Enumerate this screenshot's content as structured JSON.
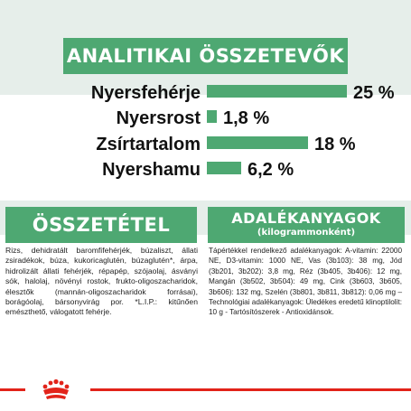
{
  "header": {
    "title": "ANALITIKAI ÖSSZETEVŐK"
  },
  "nutrients": [
    {
      "label": "Nyersfehérje",
      "value": "25 %",
      "percent": 25
    },
    {
      "label": "Nyersrost",
      "value": "1,8 %",
      "percent": 1.8
    },
    {
      "label": "Zsírtartalom",
      "value": "18 %",
      "percent": 18
    },
    {
      "label": "Nyershamu",
      "value": "6,2 %",
      "percent": 6.2
    }
  ],
  "composition": {
    "title": "ÖSSZETÉTEL",
    "text": "Rizs, dehidratált baromfifehérjék, búzaliszt, állati zsiradékok, búza, kukoricaglutén, búzaglutén*, árpa, hidrolizált állati fehérjék, répapép, szójaolaj, ásványi sók, halolaj, növényi rostok, frukto-oligoszacharidok, élesztők (mannán-oligoszacharidok forrásai), borágóolaj, bársonyvirág por. *L.I.P.: kitűnően emészthető, válogatott fehérje."
  },
  "additives": {
    "title": "ADALÉKANYAGOK",
    "subtitle": "(kilogrammonként)",
    "text": "Tápértékkel rendelkező adalékanyagok: A-vitamin: 22000 NE, D3-vitamin: 1000 NE, Vas (3b103): 38 mg, Jód (3b201, 3b202): 3,8 mg, Réz (3b405, 3b406): 12 mg, Mangán (3b502, 3b504): 49 mg, Cink (3b603, 3b605, 3b606): 132 mg, Szelén (3b801, 3b811, 3b812): 0,06 mg – Technológiai adalékanyagok: Üledékes eredetű klinoptilolit: 10 g - Tartósítószerek - Antioxidánsok."
  },
  "colors": {
    "accent_green": "#4ea872",
    "band_tint": "#e6eeea",
    "brand_red": "#e2231a"
  },
  "footer": {
    "logo_icon": "royal-canin-crown-icon"
  }
}
